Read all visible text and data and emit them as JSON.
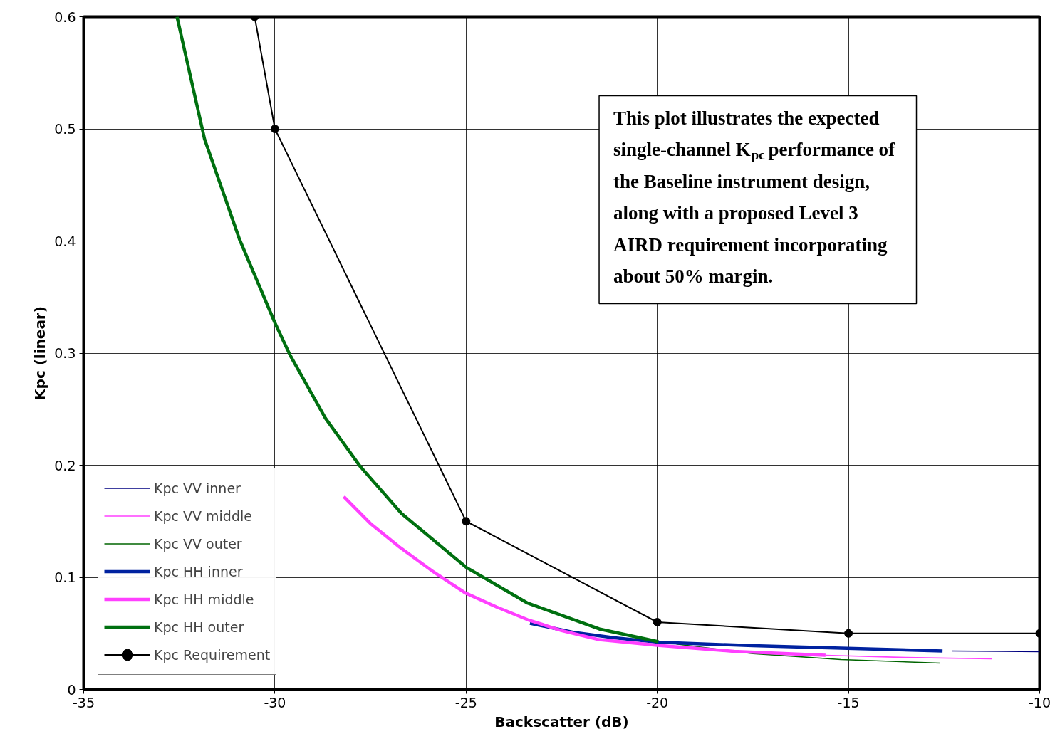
{
  "chart_data": {
    "type": "line",
    "xlabel": "Backscatter (dB)",
    "ylabel": "Kpc (linear)",
    "xlim": [
      -35,
      -10
    ],
    "xticks": [
      -35,
      -30,
      -25,
      -20,
      -15,
      -10
    ],
    "ylim": [
      0,
      0.6
    ],
    "yticks": [
      0,
      0.1,
      0.2,
      0.3,
      0.4,
      0.5,
      0.6
    ],
    "grid": true,
    "legend": "bottom left",
    "marker": "none",
    "line_style": "solid",
    "annotations": [
      "This plot illustrates the expected\nsingle-channel K$_{pc}$ performance of\nthe Baseline instrument design,\nalong with a proposed Level 3\nAIRD requirement incorporating\nabout 50% margin."
    ],
    "series": [
      {
        "name": "Kpc VV inner",
        "color": "#000080",
        "x": [
          -12.3,
          -11.0,
          -10.0
        ],
        "values": [
          0.0343,
          0.034,
          0.0337
        ]
      },
      {
        "name": "Kpc VV middle",
        "color": "#ff40ff",
        "x": [
          -15.6,
          -13.5,
          -11.25
        ],
        "values": [
          0.0305,
          0.0285,
          0.0273
        ]
      },
      {
        "name": "Kpc VV outer",
        "color": "#006400",
        "x": [
          -19.5,
          -17.5,
          -15.2,
          -12.6
        ],
        "values": [
          0.0405,
          0.032,
          0.0267,
          0.0235
        ]
      },
      {
        "name": "Kpc HH inner",
        "color": "#0022a0",
        "x": [
          -23.33,
          -22.2,
          -21.12,
          -19.94,
          -17.5,
          -15.2,
          -12.54
        ],
        "values": [
          0.059,
          0.051,
          0.046,
          0.042,
          0.039,
          0.0368,
          0.0343
        ]
      },
      {
        "name": "Kpc HH middle",
        "color": "#ff40ff",
        "x": [
          -28.2,
          -27.5,
          -26.74,
          -25.9,
          -25.03,
          -24.2,
          -23.39,
          -22.5,
          -21.52,
          -20.0,
          -18.0,
          -15.6
        ],
        "values": [
          0.172,
          0.148,
          0.127,
          0.106,
          0.0863,
          0.0735,
          0.0622,
          0.0525,
          0.0444,
          0.0394,
          0.034,
          0.0305
        ]
      },
      {
        "name": "Kpc HH outer",
        "color": "#007010",
        "x": [
          -32.56,
          -31.84,
          -30.92,
          -30.0,
          -29.6,
          -28.68,
          -27.77,
          -26.69,
          -25.0,
          -23.39,
          -21.52,
          -19.97
        ],
        "values": [
          0.6,
          0.491,
          0.401,
          0.327,
          0.298,
          0.242,
          0.199,
          0.157,
          0.109,
          0.077,
          0.054,
          0.0425
        ]
      },
      {
        "name": "Kpc Requirement",
        "color": "#000000",
        "marker": "circle",
        "x": [
          -30.53,
          -30,
          -25,
          -20,
          -15,
          -10
        ],
        "values": [
          0.6,
          0.5,
          0.15,
          0.06,
          0.05,
          0.05
        ]
      }
    ]
  }
}
